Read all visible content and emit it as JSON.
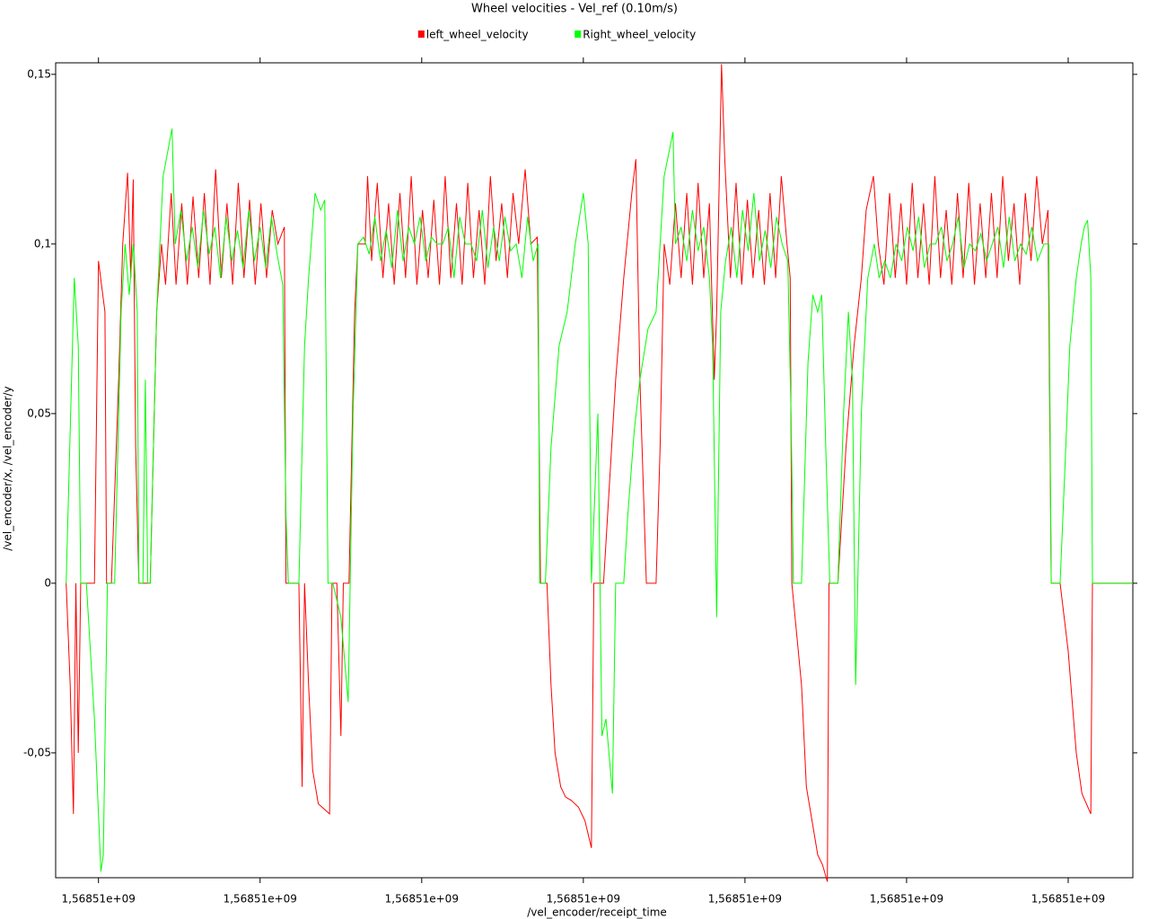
{
  "chart_data": {
    "type": "line",
    "title": "Wheel velocities - Vel_ref (0.10m/s)",
    "x_label": "/vel_encoder/receipt_time",
    "y_label": "/vel_encoder/x, /vel_encoder/y",
    "legend": "top",
    "xlim": [
      1568509994.7,
      1568510128.0
    ],
    "ylim": [
      -0.0868,
      0.1534
    ],
    "xticks": [
      {
        "value": 1568510000,
        "label": "1,56851e+09"
      },
      {
        "value": 1568510020,
        "label": "1,56851e+09"
      },
      {
        "value": 1568510040,
        "label": "1,56851e+09"
      },
      {
        "value": 1568510060,
        "label": "1,56851e+09"
      },
      {
        "value": 1568510080,
        "label": "1,56851e+09"
      },
      {
        "value": 1568510100,
        "label": "1,56851e+09"
      },
      {
        "value": 1568510120,
        "label": "1,56851e+09"
      }
    ],
    "yticks": [
      {
        "value": -0.05,
        "label": "-0,05"
      },
      0,
      {
        "value": 0.05,
        "label": "0,05"
      },
      {
        "value": 0.1,
        "label": "0,1"
      },
      {
        "value": 0.15,
        "label": "0,15"
      }
    ],
    "series": [
      {
        "name": "left_wheel_velocity",
        "color": "#ff0000",
        "x": [
          1568509996,
          1568509996.5,
          1568509996.9,
          1568509997.2,
          1568509997.5,
          1568509997.8,
          1568509999.5,
          1568510000,
          1568510000.8,
          1568510001,
          1568510001.6,
          1568510002.5,
          1568510003,
          1568510003.6,
          1568510004,
          1568510004.3,
          1568510004.6,
          1568510005,
          1568510006.4,
          1568510007.2,
          1568510007.8,
          1568510008.3,
          1568510009,
          1568510009.6,
          1568510010.3,
          1568510011,
          1568510011.7,
          1568510012.4,
          1568510013.1,
          1568510013.8,
          1568510014.5,
          1568510015.2,
          1568510015.9,
          1568510016.6,
          1568510017.3,
          1568510018,
          1568510018.7,
          1568510019.4,
          1568510020.1,
          1568510020.8,
          1568510021.5,
          1568510022.2,
          1568510023,
          1568510023.2,
          1568510024.8,
          1568510025.2,
          1568510025.5,
          1568510026,
          1568510026.5,
          1568510027.2,
          1568510028.6,
          1568510028.9,
          1568510029.5,
          1568510030,
          1568510030.3,
          1568510031,
          1568510031.7,
          1568510032.1,
          1568510033,
          1568510033.3,
          1568510033.8,
          1568510034.5,
          1568510035.2,
          1568510035.9,
          1568510036.6,
          1568510037.3,
          1568510038,
          1568510038.7,
          1568510039.4,
          1568510040.1,
          1568510040.8,
          1568510041.5,
          1568510042.2,
          1568510042.9,
          1568510043.6,
          1568510044.3,
          1568510045,
          1568510045.7,
          1568510046.4,
          1568510047.1,
          1568510047.8,
          1568510048.5,
          1568510049.2,
          1568510049.9,
          1568510050.6,
          1568510051.3,
          1568510052,
          1568510052.8,
          1568510053.5,
          1568510054.3,
          1568510054.5,
          1568510054.7,
          1568510055.5,
          1568510056,
          1568510056.5,
          1568510057.2,
          1568510057.8,
          1568510058.5,
          1568510059.4,
          1568510060.2,
          1568510061,
          1568510061.3,
          1568510062.5,
          1568510063.5,
          1568510064,
          1568510065,
          1568510066,
          1568510066.5,
          1568510067,
          1568510067.8,
          1568510069,
          1568510069.5,
          1568510070,
          1568510070.7,
          1568510071.4,
          1568510072.1,
          1568510072.8,
          1568510073.5,
          1568510074.2,
          1568510074.9,
          1568510075.6,
          1568510076.2,
          1568510076.5,
          1568510077.1,
          1568510077.5,
          1568510078.2,
          1568510078.9,
          1568510079.6,
          1568510080.3,
          1568510081,
          1568510081.7,
          1568510082.4,
          1568510083.1,
          1568510083.8,
          1568510084.5,
          1568510085.2,
          1568510085.6,
          1568510085.8,
          1568510087,
          1568510087.6,
          1568510088.3,
          1568510089,
          1568510089.6,
          1568510090.2,
          1568510090.4,
          1568510091.5,
          1568510092.5,
          1568510093.5,
          1568510094.4,
          1568510095,
          1568510095.9,
          1568510096.5,
          1568510097.2,
          1568510097.9,
          1568510098.6,
          1568510099.3,
          1568510100,
          1568510100.7,
          1568510101.4,
          1568510102.1,
          1568510102.8,
          1568510103.5,
          1568510104.2,
          1568510104.9,
          1568510105.6,
          1568510106.3,
          1568510107,
          1568510107.7,
          1568510108.4,
          1568510109.1,
          1568510109.8,
          1568510110.5,
          1568510111.2,
          1568510111.9,
          1568510112.6,
          1568510113.3,
          1568510114,
          1568510114.7,
          1568510115.4,
          1568510116.1,
          1568510116.8,
          1568510117.5,
          1568510117.9,
          1568510119,
          1568510120,
          1568510121,
          1568510121.7,
          1568510122.8,
          1568510123,
          1568510128
        ],
        "values": [
          0,
          -0.03,
          -0.068,
          0,
          -0.05,
          0,
          0,
          0.095,
          0.08,
          0,
          0,
          0.06,
          0.1,
          0.121,
          0.09,
          0.119,
          0.04,
          0,
          0,
          0.08,
          0.1,
          0.088,
          0.115,
          0.088,
          0.112,
          0.088,
          0.114,
          0.09,
          0.115,
          0.088,
          0.122,
          0.09,
          0.112,
          0.088,
          0.118,
          0.09,
          0.113,
          0.088,
          0.112,
          0.09,
          0.11,
          0.1,
          0.105,
          0,
          0,
          -0.06,
          0,
          -0.03,
          -0.055,
          -0.065,
          -0.068,
          0,
          0,
          -0.045,
          0,
          0,
          0.08,
          0.1,
          0.1,
          0.12,
          0.095,
          0.118,
          0.09,
          0.112,
          0.088,
          0.115,
          0.09,
          0.12,
          0.088,
          0.11,
          0.09,
          0.113,
          0.088,
          0.12,
          0.09,
          0.112,
          0.088,
          0.118,
          0.09,
          0.11,
          0.088,
          0.12,
          0.095,
          0.112,
          0.09,
          0.115,
          0.1,
          0.122,
          0.1,
          0.102,
          0.05,
          0,
          0,
          -0.03,
          -0.05,
          -0.06,
          -0.063,
          -0.064,
          -0.066,
          -0.07,
          -0.078,
          0,
          0,
          0.04,
          0.06,
          0.09,
          0.115,
          0.125,
          0.06,
          0,
          0,
          0.04,
          0.1,
          0.088,
          0.112,
          0.09,
          0.115,
          0.088,
          0.118,
          0.09,
          0.112,
          0.06,
          0.08,
          0.153,
          0.125,
          0.09,
          0.118,
          0.088,
          0.113,
          0.09,
          0.11,
          0.088,
          0.115,
          0.09,
          0.12,
          0.1,
          0.09,
          0,
          -0.03,
          -0.06,
          -0.07,
          -0.08,
          -0.083,
          -0.088,
          0,
          0,
          0.04,
          0.07,
          0.09,
          0.11,
          0.12,
          0.1,
          0.088,
          0.115,
          0.09,
          0.112,
          0.088,
          0.118,
          0.09,
          0.112,
          0.088,
          0.12,
          0.09,
          0.11,
          0.088,
          0.115,
          0.09,
          0.118,
          0.088,
          0.112,
          0.09,
          0.115,
          0.09,
          0.12,
          0.095,
          0.112,
          0.088,
          0.115,
          0.095,
          0.12,
          0.1,
          0.11,
          0,
          0,
          -0.02,
          -0.05,
          -0.062,
          -0.068,
          0,
          0
        ]
      },
      {
        "name": "Right_wheel_velocity",
        "color": "#00ff00",
        "x": [
          1568509996,
          1568509997,
          1568509997.5,
          1568509997.8,
          1568509998.5,
          1568509999.5,
          1568510000.3,
          1568510000.6,
          1568510001.1,
          1568510002,
          1568510002.8,
          1568510003.3,
          1568510003.8,
          1568510004.3,
          1568510004.8,
          1568510005,
          1568510005.5,
          1568510005.8,
          1568510006.1,
          1568510006.4,
          1568510007.2,
          1568510008,
          1568510009.1,
          1568510009.5,
          1568510010.2,
          1568510010.9,
          1568510011.6,
          1568510012.3,
          1568510013,
          1568510013.7,
          1568510014.4,
          1568510015.1,
          1568510015.8,
          1568510016.5,
          1568510017.2,
          1568510017.9,
          1568510018.6,
          1568510019.3,
          1568510020,
          1568510020.7,
          1568510021.4,
          1568510022.1,
          1568510022.8,
          1568510023.2,
          1568510023.5,
          1568510024.8,
          1568510025.5,
          1568510026,
          1568510026.8,
          1568510027.5,
          1568510028,
          1568510028.4,
          1568510029,
          1568510030,
          1568510030.9,
          1568510031.5,
          1568510032.1,
          1568510032.8,
          1568510033.5,
          1568510034.2,
          1568510034.9,
          1568510035.6,
          1568510036.3,
          1568510037,
          1568510037.7,
          1568510038.4,
          1568510039.1,
          1568510039.8,
          1568510040.5,
          1568510041.2,
          1568510041.9,
          1568510042.6,
          1568510043.3,
          1568510044,
          1568510044.7,
          1568510045.4,
          1568510046.1,
          1568510046.8,
          1568510047.5,
          1568510048.2,
          1568510048.9,
          1568510049.6,
          1568510050.3,
          1568510051,
          1568510051.7,
          1568510052.4,
          1568510053.1,
          1568510053.8,
          1568510054.4,
          1568510054.6,
          1568510055.3,
          1568510056,
          1568510057,
          1568510058,
          1568510059,
          1568510060,
          1568510060.6,
          1568510061,
          1568510061.8,
          1568510062.3,
          1568510062.8,
          1568510063.6,
          1568510064,
          1568510065,
          1568510065.5,
          1568510066.3,
          1568510067,
          1568510068,
          1568510069,
          1568510070,
          1568510071.1,
          1568510071.4,
          1568510072.1,
          1568510072.8,
          1568510073.5,
          1568510074.2,
          1568510074.9,
          1568510075.6,
          1568510076,
          1568510076.5,
          1568510077,
          1568510077.6,
          1568510078.3,
          1568510079,
          1568510079.7,
          1568510080.4,
          1568510081.1,
          1568510081.8,
          1568510082.5,
          1568510083.2,
          1568510083.9,
          1568510084.6,
          1568510085.3,
          1568510085.7,
          1568510086,
          1568510087,
          1568510087.8,
          1568510088.4,
          1568510089,
          1568510089.5,
          1568510090,
          1568510090.5,
          1568510091.5,
          1568510092.2,
          1568510092.8,
          1568510093.3,
          1568510093.7,
          1568510094.4,
          1568510095.2,
          1568510096,
          1568510096.6,
          1568510097.3,
          1568510098,
          1568510098.7,
          1568510099.4,
          1568510100.1,
          1568510100.8,
          1568510101.5,
          1568510102.2,
          1568510102.9,
          1568510103.6,
          1568510104.3,
          1568510105,
          1568510105.7,
          1568510106.4,
          1568510107.1,
          1568510107.8,
          1568510108.5,
          1568510109.2,
          1568510109.9,
          1568510110.6,
          1568510111.3,
          1568510112,
          1568510112.7,
          1568510113.4,
          1568510114.1,
          1568510114.8,
          1568510115.5,
          1568510116.2,
          1568510117,
          1568510117.6,
          1568510117.9,
          1568510119,
          1568510119.7,
          1568510120.2,
          1568510121,
          1568510121.6,
          1568510122,
          1568510122.4,
          1568510122.8,
          1568510123,
          1568510128
        ],
        "values": [
          0,
          0.09,
          0.07,
          0,
          0,
          -0.04,
          -0.085,
          -0.08,
          0,
          0,
          0.08,
          0.1,
          0.085,
          0.1,
          0.08,
          0,
          0,
          0.06,
          0,
          0,
          0.08,
          0.12,
          0.134,
          0.1,
          0.11,
          0.095,
          0.105,
          0.093,
          0.11,
          0.097,
          0.105,
          0.09,
          0.108,
          0.095,
          0.104,
          0.093,
          0.11,
          0.095,
          0.105,
          0.093,
          0.108,
          0.097,
          0.088,
          0.02,
          0,
          0,
          0.07,
          0.09,
          0.115,
          0.11,
          0.113,
          0,
          0,
          -0.01,
          -0.035,
          0.05,
          0.1,
          0.102,
          0.097,
          0.108,
          0.095,
          0.104,
          0.093,
          0.11,
          0.095,
          0.105,
          0.1,
          0.108,
          0.095,
          0.102,
          0.1,
          0.1,
          0.105,
          0.09,
          0.108,
          0.1,
          0.1,
          0.095,
          0.11,
          0.093,
          0.105,
          0.095,
          0.108,
          0.098,
          0.1,
          0.09,
          0.108,
          0.095,
          0.1,
          0,
          0,
          0.04,
          0.07,
          0.08,
          0.1,
          0.115,
          0.1,
          0,
          0.05,
          -0.045,
          -0.04,
          -0.062,
          0,
          0,
          0.02,
          0.045,
          0.06,
          0.075,
          0.08,
          0.12,
          0.133,
          0.1,
          0.105,
          0.095,
          0.11,
          0.098,
          0.105,
          0.09,
          0.07,
          -0.01,
          0.08,
          0.095,
          0.105,
          0.09,
          0.11,
          0.098,
          0.115,
          0.095,
          0.104,
          0.093,
          0.108,
          0.1,
          0.095,
          0.05,
          0,
          0,
          0.065,
          0.085,
          0.08,
          0.085,
          0.04,
          0,
          0,
          0.05,
          0.08,
          0.06,
          -0.03,
          0.05,
          0.09,
          0.1,
          0.09,
          0.095,
          0.09,
          0.1,
          0.095,
          0.105,
          0.098,
          0.108,
          0.093,
          0.1,
          0.1,
          0.105,
          0.095,
          0.1,
          0.108,
          0.093,
          0.1,
          0.098,
          0.103,
          0.095,
          0.1,
          0.105,
          0.093,
          0.108,
          0.095,
          0.1,
          0.097,
          0.105,
          0.095,
          0.1,
          0.1,
          0,
          0,
          0.04,
          0.07,
          0.09,
          0.1,
          0.105,
          0.107,
          0.09,
          0,
          0
        ]
      }
    ]
  }
}
